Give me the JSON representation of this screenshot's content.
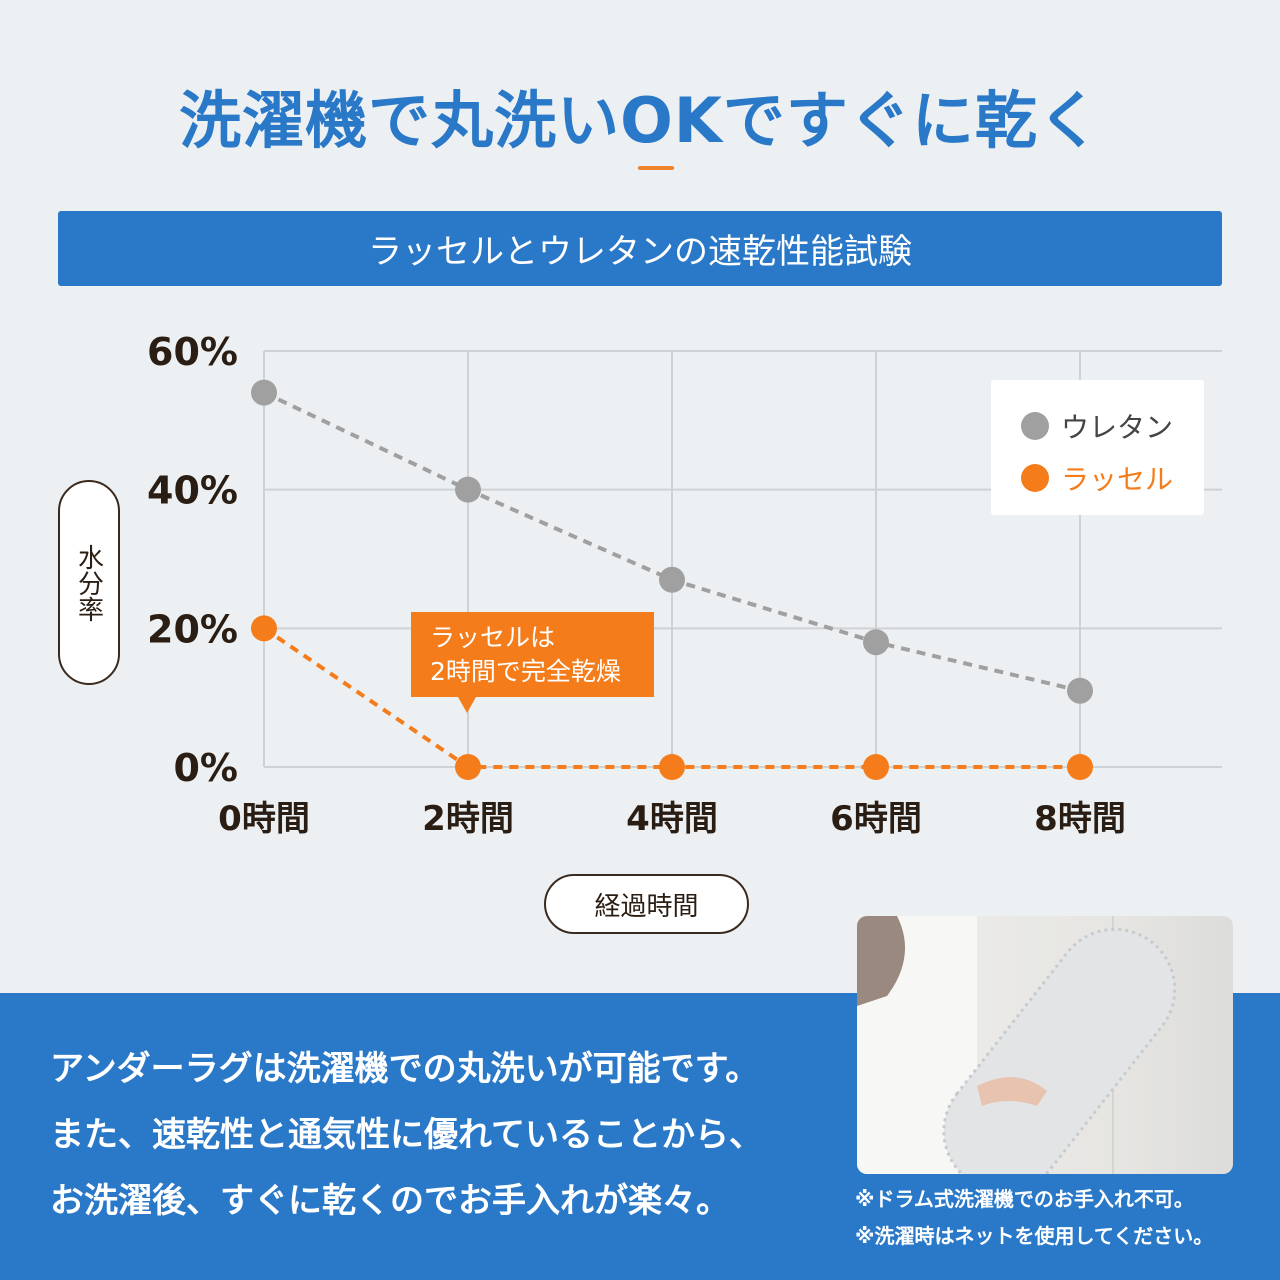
{
  "header": {
    "title": "洗濯機で丸洗いOKですぐに乾く",
    "banner": "ラッセルとウレタンの速乾性能試験"
  },
  "chart_data": {
    "type": "line",
    "title": "ラッセルとウレタンの速乾性能試験",
    "xlabel": "経過時間",
    "ylabel": "水分率",
    "categories": [
      "0時間",
      "2時間",
      "4時間",
      "6時間",
      "8時間"
    ],
    "x": [
      0,
      2,
      4,
      6,
      8
    ],
    "yticks": [
      "0%",
      "20%",
      "40%",
      "60%"
    ],
    "ylim": [
      0,
      60
    ],
    "grid": true,
    "legend_position": "top-right",
    "series": [
      {
        "name": "ウレタン",
        "values": [
          54,
          40,
          27,
          18,
          11
        ],
        "color": "#a0a0a0",
        "style": "dashed"
      },
      {
        "name": "ラッセル",
        "values": [
          20,
          0,
          0,
          0,
          0
        ],
        "color": "#f57c1a",
        "style": "dashed"
      }
    ],
    "annotation": {
      "line1": "ラッセルは",
      "line2": "2時間で完全乾燥",
      "target_series": "ラッセル",
      "target_x": 2
    }
  },
  "body": {
    "lines": [
      "アンダーラグは洗濯機での丸洗いが可能です。",
      "また、速乾性と通気性に優れていることから、",
      "お洗濯後、すぐに乾くのでお手入れが楽々。"
    ]
  },
  "notes": [
    "※ドラム式洗濯機でのお手入れ不可。",
    "※洗濯時はネットを使用してください。"
  ],
  "photo": {
    "subject": "woman holding rolled mesh rug"
  }
}
